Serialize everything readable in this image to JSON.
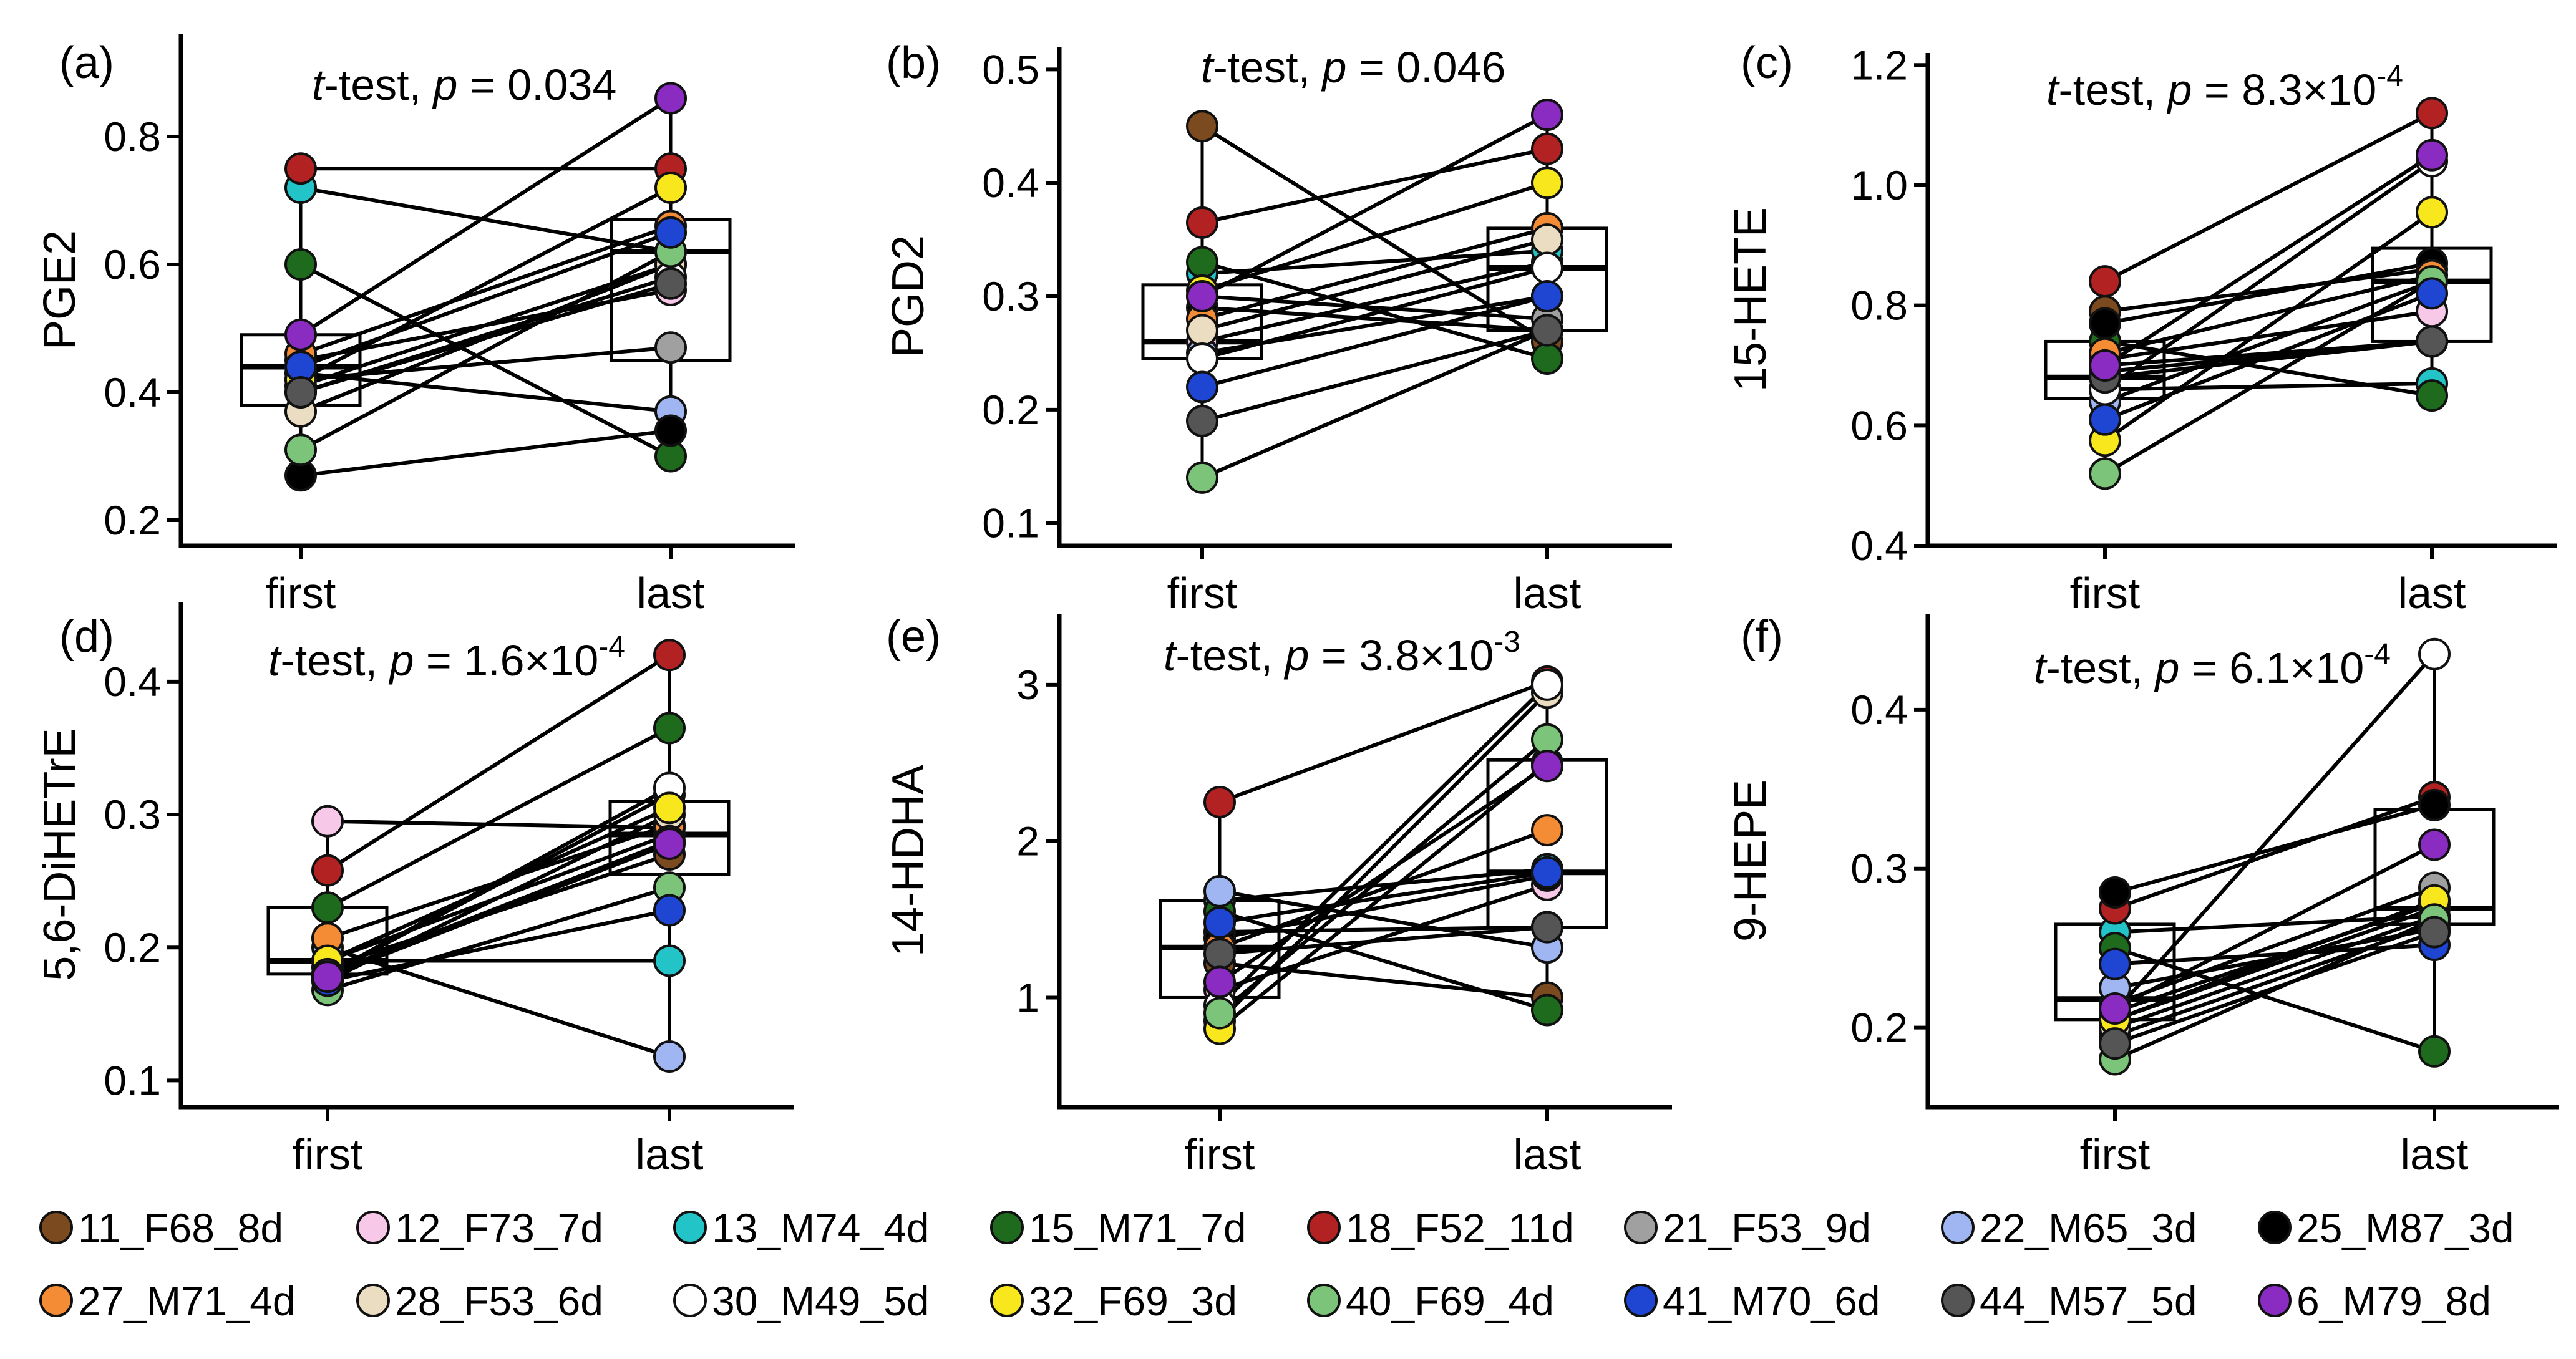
{
  "chart_data": [
    {
      "type": "paired-box",
      "panel": "(a)",
      "title_test": "t-test,",
      "p_value": "0.034",
      "ylabel": "PGE2",
      "categories": [
        "first",
        "last"
      ],
      "ylim": [
        0.16,
        0.96
      ],
      "yticks": [
        0.2,
        0.4,
        0.6,
        0.8
      ],
      "ytick_labels": [
        "0.2",
        "0.4",
        "0.6",
        "0.8"
      ],
      "box": {
        "first": {
          "q1": 0.38,
          "median": 0.44,
          "q3": 0.49,
          "min": 0.27,
          "max": 0.75
        },
        "last": {
          "q1": 0.45,
          "median": 0.62,
          "q3": 0.67,
          "min": 0.3,
          "max": 0.86
        }
      },
      "points": [
        {
          "subject": "11_F68_8d",
          "first": 0.41,
          "last": 0.6
        },
        {
          "subject": "12_F73_7d",
          "first": 0.45,
          "last": 0.56
        },
        {
          "subject": "13_M74_4d",
          "first": 0.72,
          "last": 0.62
        },
        {
          "subject": "15_M71_7d",
          "first": 0.6,
          "last": 0.3
        },
        {
          "subject": "18_F52_11d",
          "first": 0.75,
          "last": 0.75
        },
        {
          "subject": "21_F53_9d",
          "first": 0.42,
          "last": 0.47
        },
        {
          "subject": "22_M65_3d",
          "first": 0.43,
          "last": 0.37
        },
        {
          "subject": "25_M87_3d",
          "first": 0.27,
          "last": 0.34
        },
        {
          "subject": "27_M71_4d",
          "first": 0.46,
          "last": 0.66
        },
        {
          "subject": "28_F53_6d",
          "first": 0.37,
          "last": 0.6
        },
        {
          "subject": "30_M49_5d",
          "first": 0.4,
          "last": 0.58
        },
        {
          "subject": "32_F69_3d",
          "first": 0.42,
          "last": 0.72
        },
        {
          "subject": "40_F69_4d",
          "first": 0.31,
          "last": 0.62
        },
        {
          "subject": "41_M70_6d",
          "first": 0.44,
          "last": 0.65
        },
        {
          "subject": "44_M57_5d",
          "first": 0.4,
          "last": 0.57
        },
        {
          "subject": "6_M79_8d",
          "first": 0.49,
          "last": 0.86
        }
      ]
    },
    {
      "type": "paired-box",
      "panel": "(b)",
      "title_test": "t-test,",
      "p_value": "0.046",
      "ylabel": "PGD2",
      "categories": [
        "first",
        "last"
      ],
      "ylim": [
        0.08,
        0.52
      ],
      "yticks": [
        0.1,
        0.2,
        0.3,
        0.4,
        0.5
      ],
      "ytick_labels": [
        "0.1",
        "0.2",
        "0.3",
        "0.4",
        "0.5"
      ],
      "box": {
        "first": {
          "q1": 0.245,
          "median": 0.26,
          "q3": 0.31,
          "min": 0.14,
          "max": 0.45
        },
        "last": {
          "q1": 0.27,
          "median": 0.325,
          "q3": 0.36,
          "min": 0.245,
          "max": 0.46
        }
      },
      "points": [
        {
          "subject": "11_F68_8d",
          "first": 0.45,
          "last": 0.26
        },
        {
          "subject": "12_F73_7d",
          "first": 0.26,
          "last": 0.33
        },
        {
          "subject": "13_M74_4d",
          "first": 0.32,
          "last": 0.34
        },
        {
          "subject": "15_M71_7d",
          "first": 0.33,
          "last": 0.245
        },
        {
          "subject": "18_F52_11d",
          "first": 0.365,
          "last": 0.43
        },
        {
          "subject": "21_F53_9d",
          "first": 0.3,
          "last": 0.28
        },
        {
          "subject": "22_M65_3d",
          "first": 0.25,
          "last": 0.3
        },
        {
          "subject": "25_M87_3d",
          "first": 0.29,
          "last": 0.27
        },
        {
          "subject": "27_M71_4d",
          "first": 0.28,
          "last": 0.36
        },
        {
          "subject": "28_F53_6d",
          "first": 0.27,
          "last": 0.35
        },
        {
          "subject": "30_M49_5d",
          "first": 0.245,
          "last": 0.325
        },
        {
          "subject": "32_F69_3d",
          "first": 0.305,
          "last": 0.4
        },
        {
          "subject": "40_F69_4d",
          "first": 0.14,
          "last": 0.27
        },
        {
          "subject": "41_M70_6d",
          "first": 0.22,
          "last": 0.3
        },
        {
          "subject": "44_M57_5d",
          "first": 0.19,
          "last": 0.27
        },
        {
          "subject": "6_M79_8d",
          "first": 0.3,
          "last": 0.46
        }
      ]
    },
    {
      "type": "paired-box",
      "panel": "(c)",
      "title_test": "t-test,",
      "p_value": "8.3×10",
      "p_exponent": "-4",
      "ylabel": "15-HETE",
      "categories": [
        "first",
        "last"
      ],
      "ylim": [
        0.4,
        1.22
      ],
      "yticks": [
        0.4,
        0.6,
        0.8,
        1.0,
        1.2
      ],
      "ytick_labels": [
        "0.4",
        "0.6",
        "0.8",
        "1.0",
        "1.2"
      ],
      "box": {
        "first": {
          "q1": 0.645,
          "median": 0.68,
          "q3": 0.74,
          "min": 0.52,
          "max": 0.84
        },
        "last": {
          "q1": 0.74,
          "median": 0.84,
          "q3": 0.895,
          "min": 0.65,
          "max": 1.12
        }
      },
      "points": [
        {
          "subject": "11_F68_8d",
          "first": 0.79,
          "last": 0.86
        },
        {
          "subject": "12_F73_7d",
          "first": 0.71,
          "last": 0.79
        },
        {
          "subject": "13_M74_4d",
          "first": 0.66,
          "last": 0.67
        },
        {
          "subject": "15_M71_7d",
          "first": 0.74,
          "last": 0.65
        },
        {
          "subject": "18_F52_11d",
          "first": 0.84,
          "last": 1.12
        },
        {
          "subject": "21_F53_9d",
          "first": 0.69,
          "last": 0.74
        },
        {
          "subject": "22_M65_3d",
          "first": 0.64,
          "last": 0.84
        },
        {
          "subject": "25_M87_3d",
          "first": 0.77,
          "last": 0.87
        },
        {
          "subject": "27_M71_4d",
          "first": 0.72,
          "last": 0.85
        },
        {
          "subject": "28_F53_6d",
          "first": 0.7,
          "last": 0.74
        },
        {
          "subject": "30_M49_5d",
          "first": 0.66,
          "last": 1.04
        },
        {
          "subject": "32_F69_3d",
          "first": 0.575,
          "last": 0.955
        },
        {
          "subject": "40_F69_4d",
          "first": 0.52,
          "last": 0.84
        },
        {
          "subject": "41_M70_6d",
          "first": 0.61,
          "last": 0.82
        },
        {
          "subject": "44_M57_5d",
          "first": 0.68,
          "last": 0.74
        },
        {
          "subject": "6_M79_8d",
          "first": 0.7,
          "last": 1.05
        }
      ]
    },
    {
      "type": "paired-box",
      "panel": "(d)",
      "title_test": "t-test,",
      "p_value": "1.6×10",
      "p_exponent": "-4",
      "ylabel": "5,6-DiHETrE",
      "categories": [
        "first",
        "last"
      ],
      "ylim": [
        0.08,
        0.46
      ],
      "yticks": [
        0.1,
        0.2,
        0.3,
        0.4
      ],
      "ytick_labels": [
        "0.1",
        "0.2",
        "0.3",
        "0.4"
      ],
      "box": {
        "first": {
          "q1": 0.18,
          "median": 0.19,
          "q3": 0.23,
          "min": 0.165,
          "max": 0.295
        },
        "last": {
          "q1": 0.255,
          "median": 0.285,
          "q3": 0.31,
          "min": 0.118,
          "max": 0.42
        }
      },
      "points": [
        {
          "subject": "11_F68_8d",
          "first": 0.185,
          "last": 0.27
        },
        {
          "subject": "12_F73_7d",
          "first": 0.295,
          "last": 0.29
        },
        {
          "subject": "13_M74_4d",
          "first": 0.19,
          "last": 0.19
        },
        {
          "subject": "15_M71_7d",
          "first": 0.23,
          "last": 0.365
        },
        {
          "subject": "18_F52_11d",
          "first": 0.258,
          "last": 0.42
        },
        {
          "subject": "21_F53_9d",
          "first": 0.18,
          "last": 0.315
        },
        {
          "subject": "22_M65_3d",
          "first": 0.2,
          "last": 0.118
        },
        {
          "subject": "25_M87_3d",
          "first": 0.19,
          "last": 0.285
        },
        {
          "subject": "27_M71_4d",
          "first": 0.207,
          "last": 0.292
        },
        {
          "subject": "28_F53_6d",
          "first": 0.175,
          "last": 0.3
        },
        {
          "subject": "30_M49_5d",
          "first": 0.18,
          "last": 0.32
        },
        {
          "subject": "32_F69_3d",
          "first": 0.19,
          "last": 0.305
        },
        {
          "subject": "40_F69_4d",
          "first": 0.168,
          "last": 0.245
        },
        {
          "subject": "41_M70_6d",
          "first": 0.175,
          "last": 0.228
        },
        {
          "subject": "44_M57_5d",
          "first": 0.18,
          "last": 0.28
        },
        {
          "subject": "6_M79_8d",
          "first": 0.178,
          "last": 0.278
        }
      ]
    },
    {
      "type": "paired-box",
      "panel": "(e)",
      "title_test": "t-test,",
      "p_value": "3.8×10",
      "p_exponent": "-3",
      "ylabel": "14-HDHA",
      "categories": [
        "first",
        "last"
      ],
      "ylim": [
        0.3,
        3.45
      ],
      "yticks": [
        1,
        2,
        3
      ],
      "ytick_labels": [
        "1",
        "2",
        "3"
      ],
      "box": {
        "first": {
          "q1": 1.0,
          "median": 1.32,
          "q3": 1.62,
          "min": 0.8,
          "max": 2.25
        },
        "last": {
          "q1": 1.45,
          "median": 1.8,
          "q3": 2.52,
          "min": 0.92,
          "max": 3.02
        }
      },
      "points": [
        {
          "subject": "11_F68_8d",
          "first": 1.22,
          "last": 1.0
        },
        {
          "subject": "12_F73_7d",
          "first": 1.05,
          "last": 1.72
        },
        {
          "subject": "13_M74_4d",
          "first": 1.62,
          "last": 1.82
        },
        {
          "subject": "15_M71_7d",
          "first": 1.55,
          "last": 0.92
        },
        {
          "subject": "18_F52_11d",
          "first": 2.25,
          "last": 3.02
        },
        {
          "subject": "21_F53_9d",
          "first": 1.42,
          "last": 1.45
        },
        {
          "subject": "22_M65_3d",
          "first": 1.68,
          "last": 1.32
        },
        {
          "subject": "25_M87_3d",
          "first": 1.38,
          "last": 1.78
        },
        {
          "subject": "27_M71_4d",
          "first": 1.32,
          "last": 2.07
        },
        {
          "subject": "28_F53_6d",
          "first": 0.85,
          "last": 2.95
        },
        {
          "subject": "30_M49_5d",
          "first": 0.95,
          "last": 3.0
        },
        {
          "subject": "32_F69_3d",
          "first": 0.8,
          "last": 2.5
        },
        {
          "subject": "40_F69_4d",
          "first": 0.9,
          "last": 2.65
        },
        {
          "subject": "41_M70_6d",
          "first": 1.48,
          "last": 1.8
        },
        {
          "subject": "44_M57_5d",
          "first": 1.28,
          "last": 1.45
        },
        {
          "subject": "6_M79_8d",
          "first": 1.1,
          "last": 2.48
        }
      ]
    },
    {
      "type": "paired-box",
      "panel": "(f)",
      "title_test": "t-test,",
      "p_value": "6.1×10",
      "p_exponent": "-4",
      "ylabel": "9-HEPE",
      "categories": [
        "first",
        "last"
      ],
      "ylim": [
        0.15,
        0.46
      ],
      "yticks": [
        0.2,
        0.3,
        0.4
      ],
      "ytick_labels": [
        "0.2",
        "0.3",
        "0.4"
      ],
      "box": {
        "first": {
          "q1": 0.205,
          "median": 0.218,
          "q3": 0.265,
          "min": 0.18,
          "max": 0.285
        },
        "last": {
          "q1": 0.265,
          "median": 0.275,
          "q3": 0.337,
          "min": 0.185,
          "max": 0.435
        }
      },
      "points": [
        {
          "subject": "11_F68_8d",
          "first": 0.195,
          "last": 0.265
        },
        {
          "subject": "12_F73_7d",
          "first": 0.205,
          "last": 0.275
        },
        {
          "subject": "13_M74_4d",
          "first": 0.26,
          "last": 0.27
        },
        {
          "subject": "15_M71_7d",
          "first": 0.25,
          "last": 0.185
        },
        {
          "subject": "18_F52_11d",
          "first": 0.275,
          "last": 0.345
        },
        {
          "subject": "21_F53_9d",
          "first": 0.215,
          "last": 0.288
        },
        {
          "subject": "22_M65_3d",
          "first": 0.225,
          "last": 0.262
        },
        {
          "subject": "25_M87_3d",
          "first": 0.285,
          "last": 0.34
        },
        {
          "subject": "27_M71_4d",
          "first": 0.21,
          "last": 0.278
        },
        {
          "subject": "28_F53_6d",
          "first": 0.2,
          "last": 0.27
        },
        {
          "subject": "30_M49_5d",
          "first": 0.21,
          "last": 0.435
        },
        {
          "subject": "32_F69_3d",
          "first": 0.205,
          "last": 0.28
        },
        {
          "subject": "40_F69_4d",
          "first": 0.18,
          "last": 0.268
        },
        {
          "subject": "41_M70_6d",
          "first": 0.24,
          "last": 0.252
        },
        {
          "subject": "44_M57_5d",
          "first": 0.19,
          "last": 0.26
        },
        {
          "subject": "6_M79_8d",
          "first": 0.212,
          "last": 0.315
        }
      ]
    }
  ],
  "legend": {
    "items": [
      {
        "label": "11_F68_8d",
        "color": "#7B4A1E"
      },
      {
        "label": "12_F73_7d",
        "color": "#F8C8E8"
      },
      {
        "label": "13_M74_4d",
        "color": "#22C4C8"
      },
      {
        "label": "15_M71_7d",
        "color": "#1E6B1E"
      },
      {
        "label": "18_F52_11d",
        "color": "#B22222"
      },
      {
        "label": "21_F53_9d",
        "color": "#A0A0A0"
      },
      {
        "label": "22_M65_3d",
        "color": "#9FB6F2"
      },
      {
        "label": "25_M87_3d",
        "color": "#000000"
      },
      {
        "label": "27_M71_4d",
        "color": "#F48C36"
      },
      {
        "label": "28_F53_6d",
        "color": "#EADDC2"
      },
      {
        "label": "30_M49_5d",
        "color": "#FFFFFF"
      },
      {
        "label": "32_F69_3d",
        "color": "#F8E71C"
      },
      {
        "label": "40_F69_4d",
        "color": "#7CC47A"
      },
      {
        "label": "41_M70_6d",
        "color": "#1E46D2"
      },
      {
        "label": "44_M57_5d",
        "color": "#555555"
      },
      {
        "label": "6_M79_8d",
        "color": "#8A2BC2"
      }
    ]
  }
}
